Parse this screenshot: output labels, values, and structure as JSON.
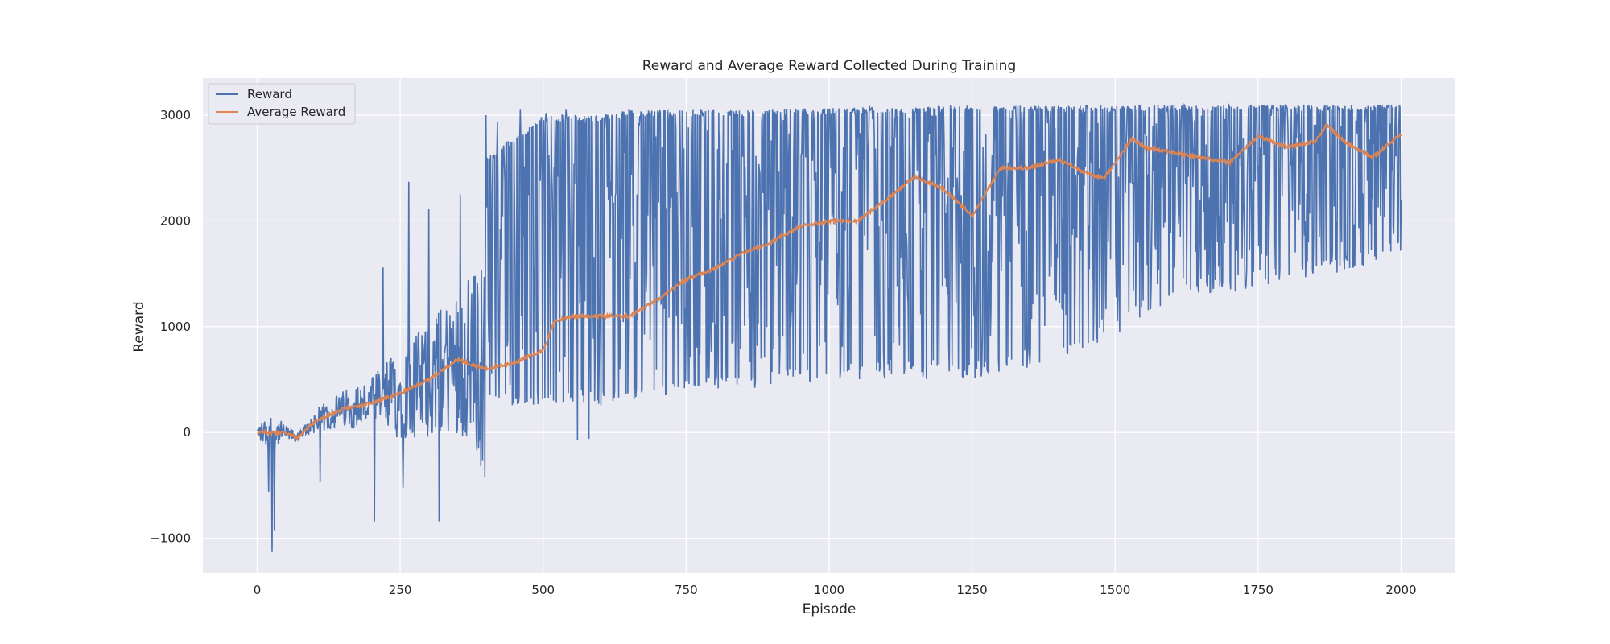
{
  "chart_data": {
    "type": "line",
    "title": "Reward and Average Reward Collected During Training",
    "xlabel": "Episode",
    "ylabel": "Reward",
    "xlim": [
      -95,
      2095
    ],
    "ylim": [
      -1330,
      3350
    ],
    "xticks": [
      0,
      250,
      500,
      750,
      1000,
      1250,
      1500,
      1750,
      2000
    ],
    "yticks": [
      -1000,
      0,
      1000,
      2000,
      3000
    ],
    "xtick_labels": [
      "0",
      "250",
      "500",
      "750",
      "1000",
      "1250",
      "1500",
      "1750",
      "2000"
    ],
    "ytick_labels": [
      "−1000",
      "0",
      "1000",
      "2000",
      "3000"
    ],
    "grid": true,
    "legend_position": "top-left",
    "colors": {
      "background": "#eaeaf2",
      "grid": "#ffffff",
      "reward": "#4c72b0",
      "average": "#dd8452"
    },
    "series": [
      {
        "name": "Reward",
        "style": "noisy",
        "note_values_are_envelope_estimates": false,
        "x": [
          0,
          25,
          50,
          75,
          100,
          150,
          200,
          250,
          300,
          350,
          400,
          450,
          500,
          550,
          600,
          650,
          700,
          750,
          800,
          850,
          900,
          950,
          1000,
          1050,
          1100,
          1150,
          1200,
          1250,
          1300,
          1350,
          1400,
          1450,
          1500,
          1550,
          1600,
          1650,
          1700,
          1750,
          1800,
          1850,
          1900,
          1950,
          2000
        ],
        "lower": [
          -150,
          -400,
          -100,
          0,
          50,
          100,
          150,
          200,
          250,
          250,
          250,
          250,
          250,
          250,
          250,
          300,
          350,
          350,
          400,
          400,
          450,
          450,
          500,
          500,
          500,
          500,
          500,
          500,
          550,
          600,
          700,
          800,
          900,
          1100,
          1200,
          1300,
          1300,
          1400,
          1400,
          1500,
          1500,
          1600,
          1700
        ],
        "upper": [
          0,
          50,
          50,
          100,
          300,
          500,
          700,
          1200,
          1500,
          1800,
          2600,
          2800,
          3000,
          3000,
          3000,
          3050,
          3050,
          3050,
          3050,
          3050,
          3050,
          3070,
          3070,
          3080,
          3080,
          3080,
          3090,
          3090,
          3090,
          3090,
          3090,
          3090,
          3090,
          3100,
          3100,
          3100,
          3100,
          3100,
          3100,
          3100,
          3100,
          3100,
          3100
        ],
        "spikes": [
          [
            20,
            -560
          ],
          [
            26,
            -1130
          ],
          [
            30,
            -930
          ],
          [
            110,
            -470
          ],
          [
            205,
            -840
          ],
          [
            220,
            1560
          ],
          [
            255,
            -520
          ],
          [
            265,
            2370
          ],
          [
            300,
            2110
          ],
          [
            318,
            -840
          ],
          [
            355,
            2250
          ],
          [
            400,
            3000
          ],
          [
            420,
            2940
          ],
          [
            460,
            3050
          ],
          [
            505,
            3020
          ],
          [
            540,
            3050
          ],
          [
            560,
            -70
          ],
          [
            580,
            -60
          ],
          [
            650,
            3040
          ],
          [
            690,
            3040
          ]
        ]
      },
      {
        "name": "Average Reward",
        "x": [
          0,
          50,
          70,
          100,
          150,
          200,
          250,
          300,
          350,
          400,
          450,
          500,
          520,
          550,
          600,
          650,
          700,
          750,
          800,
          850,
          900,
          950,
          1000,
          1050,
          1100,
          1150,
          1200,
          1250,
          1300,
          1350,
          1400,
          1450,
          1480,
          1500,
          1530,
          1550,
          1600,
          1650,
          1700,
          1750,
          1800,
          1850,
          1870,
          1900,
          1950,
          2000
        ],
        "values": [
          0,
          0,
          -50,
          100,
          220,
          280,
          370,
          500,
          690,
          600,
          660,
          780,
          1050,
          1100,
          1100,
          1100,
          1250,
          1450,
          1550,
          1700,
          1800,
          1950,
          2000,
          2000,
          2200,
          2420,
          2300,
          2050,
          2500,
          2500,
          2580,
          2450,
          2400,
          2550,
          2780,
          2700,
          2650,
          2600,
          2550,
          2800,
          2700,
          2750,
          2910,
          2750,
          2600,
          2820
        ]
      }
    ]
  }
}
